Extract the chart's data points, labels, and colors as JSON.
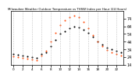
{
  "title": "Milwaukee Weather Outdoor Temperature vs THSW Index per Hour (24 Hours)",
  "hours": [
    0,
    1,
    2,
    3,
    4,
    5,
    6,
    7,
    8,
    9,
    10,
    11,
    12,
    13,
    14,
    15,
    16,
    17,
    18,
    19,
    20,
    21,
    22,
    23
  ],
  "temp": [
    28,
    27,
    26,
    25,
    24,
    23,
    28,
    30,
    38,
    46,
    54,
    58,
    62,
    64,
    63,
    60,
    56,
    50,
    44,
    40,
    36,
    34,
    32,
    30
  ],
  "thsw": [
    25,
    24,
    23,
    22,
    21,
    20,
    26,
    32,
    44,
    56,
    66,
    72,
    76,
    78,
    76,
    70,
    62,
    52,
    44,
    38,
    33,
    30,
    28,
    26
  ],
  "temp_color": "#000000",
  "thsw_color": "#ff4400",
  "bg_color": "#ffffff",
  "grid_color": "#aaaaaa",
  "ylim_min": 14,
  "ylim_max": 84,
  "yticks": [
    14,
    24,
    34,
    44,
    54,
    64,
    74
  ],
  "xtick_hours": [
    0,
    2,
    4,
    6,
    8,
    10,
    12,
    14,
    16,
    18,
    20,
    22
  ],
  "xtick_labels": [
    "0",
    "2",
    "4",
    "6",
    "8",
    "10",
    "12",
    "14",
    "16",
    "18",
    "20",
    "22"
  ],
  "marker_size": 1.5
}
